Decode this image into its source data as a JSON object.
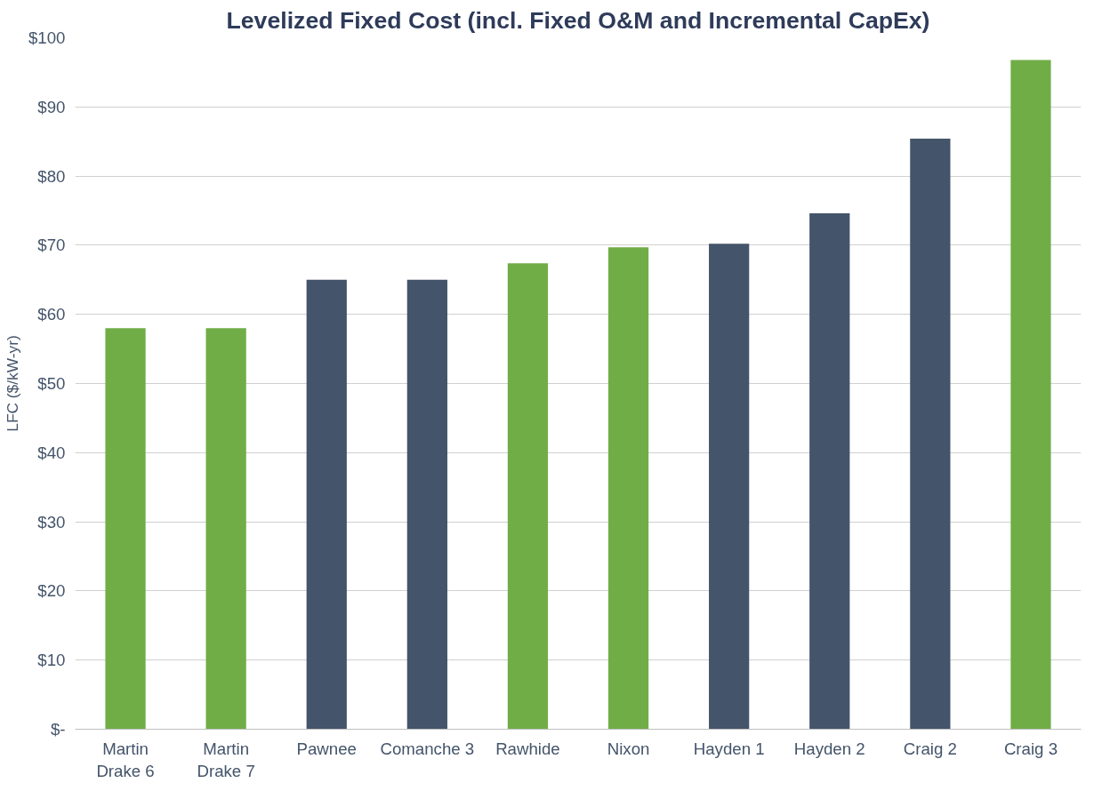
{
  "chart_data": {
    "type": "bar",
    "title": "Levelized Fixed Cost (incl. Fixed O&M and Incremental CapEx)",
    "ylabel": "LFC ($/kW-yr)",
    "categories": [
      "Martin Drake 6",
      "Martin Drake 7",
      "Pawnee",
      "Comanche 3",
      "Rawhide",
      "Nixon",
      "Hayden 1",
      "Hayden 2",
      "Craig 2",
      "Craig 3"
    ],
    "values": [
      58,
      58,
      65,
      65,
      67.4,
      69.7,
      70.2,
      74.6,
      85.4,
      96.8
    ],
    "colors": [
      "#70ad47",
      "#70ad47",
      "#44546a",
      "#44546a",
      "#70ad47",
      "#70ad47",
      "#44546a",
      "#44546a",
      "#44546a",
      "#70ad47"
    ],
    "ylim": [
      0,
      100
    ],
    "yticks": [
      {
        "value": 0,
        "label": "$-"
      },
      {
        "value": 10,
        "label": "$10"
      },
      {
        "value": 20,
        "label": "$20"
      },
      {
        "value": 30,
        "label": "$30"
      },
      {
        "value": 40,
        "label": "$40"
      },
      {
        "value": 50,
        "label": "$50"
      },
      {
        "value": 60,
        "label": "$60"
      },
      {
        "value": 70,
        "label": "$70"
      },
      {
        "value": 80,
        "label": "$80"
      },
      {
        "value": 90,
        "label": "$90"
      },
      {
        "value": 100,
        "label": "$100"
      }
    ],
    "grid": "y"
  }
}
